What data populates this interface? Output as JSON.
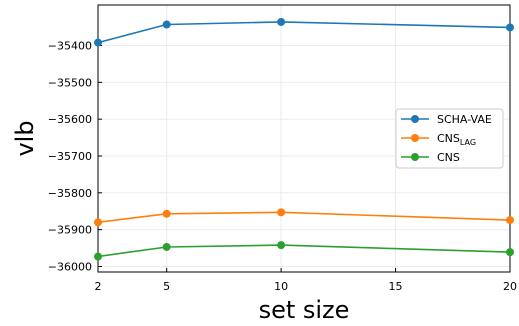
{
  "chart_data": {
    "type": "line",
    "title": "",
    "xlabel": "set size",
    "ylabel": "vlb",
    "x": [
      2,
      5,
      10,
      20
    ],
    "xlim": [
      2,
      20
    ],
    "ylim": [
      -36015,
      -35290
    ],
    "xticks": [
      2,
      5,
      10,
      15,
      20
    ],
    "yticks": [
      -36000,
      -35900,
      -35800,
      -35700,
      -35600,
      -35500,
      -35400
    ],
    "ytick_labels": [
      "−36000",
      "−35900",
      "−35800",
      "−35700",
      "−35600",
      "−35500",
      "−35400"
    ],
    "grid": true,
    "legend_position": "center-right",
    "series": [
      {
        "name": "SCHA-VAE",
        "name_sub": "",
        "color": "#1f77b4",
        "values": [
          -35392,
          -35343,
          -35336,
          -35351
        ]
      },
      {
        "name": "CNS",
        "name_sub": "LAG",
        "color": "#ff7f0e",
        "values": [
          -35880,
          -35857,
          -35853,
          -35874
        ]
      },
      {
        "name": "CNS",
        "name_sub": "",
        "color": "#2ca02c",
        "values": [
          -35973,
          -35947,
          -35942,
          -35961
        ]
      }
    ]
  }
}
